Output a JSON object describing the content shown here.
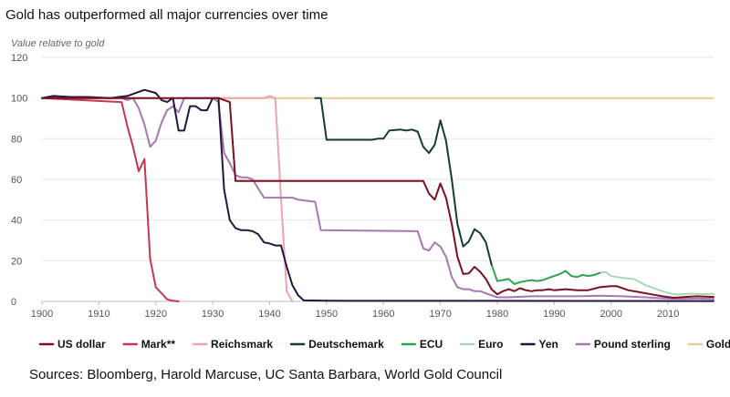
{
  "title": "Gold has outperformed all major currencies over time",
  "sources": "Sources: Bloomberg, Harold Marcuse, UC Santa Barbara, World Gold Council",
  "chart_data": {
    "type": "line",
    "title": "Gold has outperformed all major currencies over time",
    "ylabel": "Value relative to gold",
    "xlabel": "",
    "xlim": [
      1900,
      2018
    ],
    "ylim": [
      0,
      120
    ],
    "x_ticks": [
      1900,
      1910,
      1920,
      1930,
      1940,
      1950,
      1960,
      1970,
      1980,
      1990,
      2000,
      2010
    ],
    "y_ticks": [
      0,
      20,
      40,
      60,
      80,
      100,
      120
    ],
    "grid": "horizontal",
    "legend_position": "bottom",
    "series": [
      {
        "name": "US dollar",
        "color": "#7a1024",
        "points": [
          [
            1900,
            100
          ],
          [
            1931,
            100
          ],
          [
            1932,
            99
          ],
          [
            1933,
            98
          ],
          [
            1934,
            59.2
          ],
          [
            1967,
            59.2
          ],
          [
            1968,
            53
          ],
          [
            1969,
            50
          ],
          [
            1970,
            58
          ],
          [
            1971,
            51
          ],
          [
            1972,
            38
          ],
          [
            1973,
            22
          ],
          [
            1974,
            13.5
          ],
          [
            1975,
            13.8
          ],
          [
            1976,
            17
          ],
          [
            1977,
            14.5
          ],
          [
            1978,
            11
          ],
          [
            1979,
            6
          ],
          [
            1980,
            3.5
          ],
          [
            1981,
            5
          ],
          [
            1982,
            6
          ],
          [
            1983,
            5
          ],
          [
            1984,
            6.5
          ],
          [
            1985,
            5.5
          ],
          [
            1986,
            5
          ],
          [
            1987,
            5.5
          ],
          [
            1988,
            5.5
          ],
          [
            1989,
            6
          ],
          [
            1990,
            5.5
          ],
          [
            1992,
            6
          ],
          [
            1994,
            5.5
          ],
          [
            1996,
            5.5
          ],
          [
            1998,
            7
          ],
          [
            2000,
            7.5
          ],
          [
            2001,
            7.5
          ],
          [
            2002,
            6.5
          ],
          [
            2003,
            5.5
          ],
          [
            2005,
            4.5
          ],
          [
            2007,
            3.5
          ],
          [
            2009,
            2.5
          ],
          [
            2011,
            1.8
          ],
          [
            2013,
            2.2
          ],
          [
            2015,
            2.5
          ],
          [
            2018,
            2.2
          ]
        ]
      },
      {
        "name": "Mark**",
        "color": "#c8364d",
        "points": [
          [
            1900,
            100
          ],
          [
            1914,
            98
          ],
          [
            1915,
            86
          ],
          [
            1916,
            76
          ],
          [
            1917,
            64
          ],
          [
            1918,
            70
          ],
          [
            1919,
            21
          ],
          [
            1920,
            7
          ],
          [
            1921,
            4
          ],
          [
            1922,
            1
          ],
          [
            1923,
            0.3
          ],
          [
            1924,
            0
          ]
        ]
      },
      {
        "name": "Reichsmark",
        "color": "#eda3ad",
        "points": [
          [
            1924,
            100
          ],
          [
            1939,
            100
          ],
          [
            1940,
            101
          ],
          [
            1941,
            100
          ],
          [
            1942,
            50
          ],
          [
            1943,
            5
          ],
          [
            1944,
            0
          ]
        ]
      },
      {
        "name": "Deutschemark",
        "color": "#143d2c",
        "points": [
          [
            1948,
            100
          ],
          [
            1949,
            100
          ],
          [
            1950,
            79.5
          ],
          [
            1958,
            79.5
          ],
          [
            1959,
            80
          ],
          [
            1960,
            80
          ],
          [
            1961,
            84
          ],
          [
            1963,
            84.5
          ],
          [
            1964,
            84
          ],
          [
            1965,
            84.5
          ],
          [
            1966,
            83.5
          ],
          [
            1967,
            76
          ],
          [
            1968,
            73
          ],
          [
            1969,
            77
          ],
          [
            1970,
            89
          ],
          [
            1971,
            79
          ],
          [
            1972,
            60
          ],
          [
            1973,
            38
          ],
          [
            1974,
            27
          ],
          [
            1975,
            29.5
          ],
          [
            1976,
            35.5
          ],
          [
            1977,
            33.5
          ],
          [
            1978,
            29
          ],
          [
            1979,
            18
          ]
        ]
      },
      {
        "name": "ECU",
        "color": "#2fa34f",
        "points": [
          [
            1979,
            18
          ],
          [
            1980,
            10
          ],
          [
            1981,
            10.5
          ],
          [
            1982,
            11
          ],
          [
            1983,
            8.5
          ],
          [
            1984,
            9.5
          ],
          [
            1985,
            10
          ],
          [
            1986,
            10.5
          ],
          [
            1987,
            10
          ],
          [
            1988,
            10.5
          ],
          [
            1989,
            11.5
          ],
          [
            1990,
            12.5
          ],
          [
            1991,
            13.5
          ],
          [
            1992,
            15
          ],
          [
            1993,
            12.5
          ],
          [
            1994,
            12
          ],
          [
            1995,
            13
          ],
          [
            1996,
            12.5
          ],
          [
            1997,
            13
          ],
          [
            1998,
            14
          ]
        ]
      },
      {
        "name": "Euro",
        "color": "#a9d7b3",
        "points": [
          [
            1998,
            14
          ],
          [
            1999,
            14.5
          ],
          [
            2000,
            12.5
          ],
          [
            2002,
            11.5
          ],
          [
            2004,
            11
          ],
          [
            2005,
            9.5
          ],
          [
            2006,
            8
          ],
          [
            2007,
            7
          ],
          [
            2009,
            5
          ],
          [
            2011,
            3.5
          ],
          [
            2012,
            3.5
          ],
          [
            2014,
            3.8
          ],
          [
            2016,
            3.6
          ],
          [
            2018,
            3.7
          ]
        ]
      },
      {
        "name": "Yen",
        "color": "#241540",
        "points": [
          [
            1900,
            100
          ],
          [
            1902,
            101
          ],
          [
            1905,
            100.5
          ],
          [
            1908,
            100.5
          ],
          [
            1912,
            100
          ],
          [
            1915,
            101
          ],
          [
            1916,
            102
          ],
          [
            1918,
            104
          ],
          [
            1920,
            102.5
          ],
          [
            1921,
            99
          ],
          [
            1922,
            98
          ],
          [
            1923,
            100
          ],
          [
            1924,
            84
          ],
          [
            1925,
            84
          ],
          [
            1926,
            96
          ],
          [
            1927,
            96
          ],
          [
            1928,
            94
          ],
          [
            1929,
            94
          ],
          [
            1930,
            100
          ],
          [
            1931,
            100
          ],
          [
            1932,
            55
          ],
          [
            1933,
            40
          ],
          [
            1934,
            36
          ],
          [
            1935,
            35
          ],
          [
            1936,
            35
          ],
          [
            1937,
            34.5
          ],
          [
            1938,
            33
          ],
          [
            1939,
            29
          ],
          [
            1940,
            28.5
          ],
          [
            1941,
            27.5
          ],
          [
            1942,
            27.5
          ],
          [
            1943,
            17
          ],
          [
            1944,
            8
          ],
          [
            1945,
            3
          ],
          [
            1946,
            0.5
          ],
          [
            1950,
            0.3
          ],
          [
            2018,
            0.2
          ]
        ]
      },
      {
        "name": "Pound sterling",
        "color": "#a777b0",
        "points": [
          [
            1900,
            100
          ],
          [
            1914,
            100
          ],
          [
            1915,
            99
          ],
          [
            1916,
            100
          ],
          [
            1917,
            95
          ],
          [
            1918,
            87
          ],
          [
            1919,
            76
          ],
          [
            1920,
            79
          ],
          [
            1921,
            88
          ],
          [
            1922,
            94
          ],
          [
            1923,
            96
          ],
          [
            1924,
            93
          ],
          [
            1925,
            100
          ],
          [
            1930,
            100
          ],
          [
            1931,
            98
          ],
          [
            1932,
            73
          ],
          [
            1933,
            68
          ],
          [
            1934,
            62
          ],
          [
            1935,
            61
          ],
          [
            1936,
            61
          ],
          [
            1937,
            60
          ],
          [
            1939,
            51
          ],
          [
            1944,
            51
          ],
          [
            1945,
            50
          ],
          [
            1948,
            49
          ],
          [
            1949,
            35
          ],
          [
            1966,
            34.5
          ],
          [
            1967,
            26
          ],
          [
            1968,
            25
          ],
          [
            1969,
            29
          ],
          [
            1970,
            27
          ],
          [
            1971,
            22
          ],
          [
            1972,
            12
          ],
          [
            1973,
            7
          ],
          [
            1974,
            6
          ],
          [
            1975,
            6
          ],
          [
            1976,
            5
          ],
          [
            1977,
            5
          ],
          [
            1978,
            4
          ],
          [
            1979,
            3
          ],
          [
            1980,
            2
          ],
          [
            1982,
            2
          ],
          [
            1986,
            2.5
          ],
          [
            1990,
            2.5
          ],
          [
            1994,
            2.5
          ],
          [
            1998,
            2.8
          ],
          [
            2002,
            2.5
          ],
          [
            2006,
            2
          ],
          [
            2009,
            1.5
          ],
          [
            2012,
            1.2
          ],
          [
            2015,
            1.4
          ],
          [
            2018,
            1.2
          ]
        ]
      },
      {
        "name": "Gold",
        "color": "#e5cc9a",
        "points": [
          [
            1900,
            100
          ],
          [
            2018,
            100
          ]
        ]
      }
    ]
  }
}
